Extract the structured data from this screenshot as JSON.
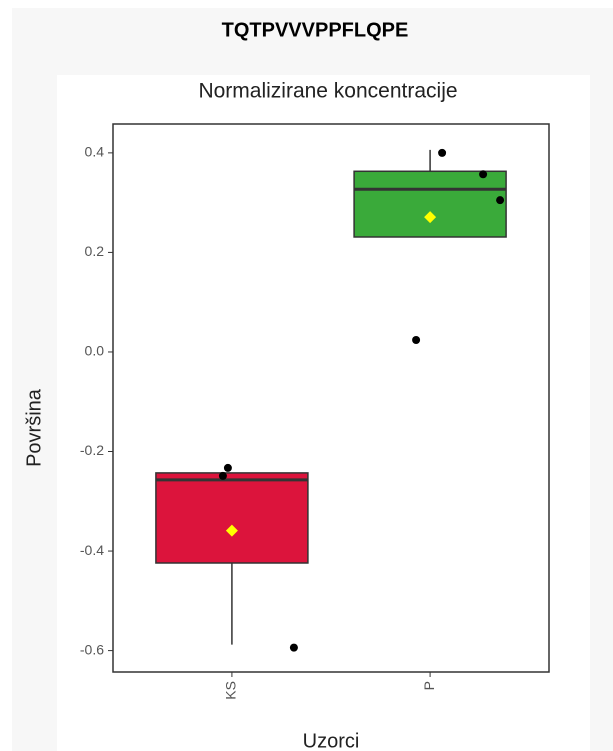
{
  "chart_data": {
    "type": "box",
    "title": "TQTPVVVPPFLQPE",
    "subtitle": "Normalizirane koncentracije",
    "x_label": "Uzorci",
    "y_label": "Površina",
    "categories": [
      "KS",
      "P"
    ],
    "boxes": [
      {
        "color": "#dc143c",
        "whisker_low": -0.588,
        "q1": -0.424,
        "median": -0.257,
        "q3": -0.243,
        "whisker_high": -0.243,
        "mean": -0.359,
        "points": [
          -0.233,
          -0.249,
          -0.594
        ]
      },
      {
        "color": "#3aaa3a",
        "whisker_low": 0.231,
        "q1": 0.231,
        "median": 0.327,
        "q3": 0.363,
        "whisker_high": 0.406,
        "mean": 0.271,
        "points": [
          0.4,
          0.357,
          0.305,
          0.024
        ]
      }
    ],
    "mean_color": "#ffff00",
    "point_color": "#000000",
    "ylim": [
      -0.643,
      0.458
    ],
    "yticks": [
      -0.6,
      -0.4,
      -0.2,
      {
        "value": 0,
        "label": "0.0"
      },
      0.2,
      0.4
    ]
  }
}
